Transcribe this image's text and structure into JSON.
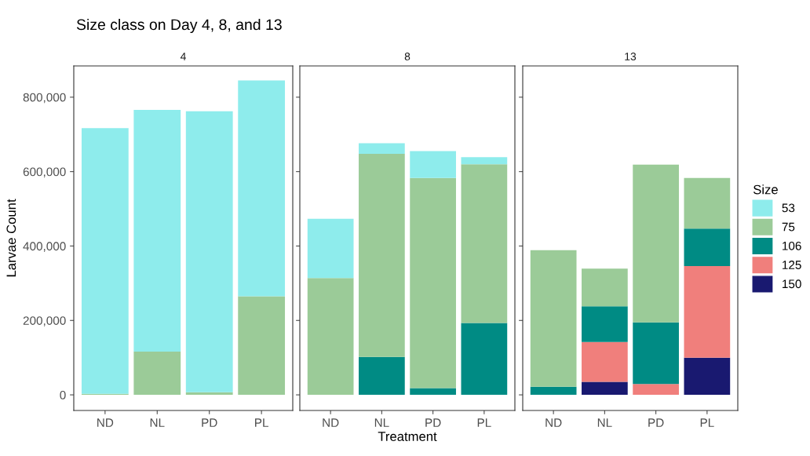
{
  "chart_data": [
    {
      "type": "bar",
      "title": "Size class on Day 4, 8, and 13",
      "subtitle": "4",
      "ylabel": "Larvae Count",
      "categories": [
        "ND",
        "NL",
        "PD",
        "PL"
      ],
      "stacked": true,
      "legend": "right",
      "ylim": [
        -42000,
        884000
      ],
      "yticks": [
        0,
        {
          "value": 200000,
          "label": "200,000"
        },
        {
          "value": 400000,
          "label": "400,000"
        },
        {
          "value": 600000,
          "label": "600,000"
        },
        {
          "value": 800000,
          "label": "800,000"
        }
      ],
      "grid": false,
      "series": [
        {
          "name": "75",
          "color": "#9bcb98",
          "values": [
            3000,
            116000,
            7000,
            265000
          ]
        },
        {
          "name": "53",
          "color": "#8eecec",
          "values": [
            714000,
            650000,
            755000,
            580000
          ]
        }
      ]
    },
    {
      "type": "bar",
      "subtitle": "8",
      "xlabel": "Treatment",
      "categories": [
        "ND",
        "NL",
        "PD",
        "PL"
      ],
      "stacked": true,
      "tick_labels": "x",
      "legend": "right",
      "ylim": [
        -42000,
        884000
      ],
      "yticks": [
        {
          "value": 0,
          "label": null
        },
        {
          "value": 200000,
          "label": null
        },
        {
          "value": 400000,
          "label": null
        },
        {
          "value": 600000,
          "label": null
        },
        {
          "value": 800000,
          "label": null
        }
      ],
      "grid": false,
      "series": [
        {
          "name": "106",
          "color": "#008b84",
          "values": [
            0,
            102000,
            18000,
            193000
          ]
        },
        {
          "name": "75",
          "color": "#9bcb98",
          "values": [
            314000,
            546000,
            565000,
            427000
          ]
        },
        {
          "name": "53",
          "color": "#8eecec",
          "values": [
            159000,
            28000,
            72000,
            19000
          ]
        }
      ]
    },
    {
      "type": "bar",
      "subtitle": "13",
      "categories": [
        "ND",
        "NL",
        "PD",
        "PL"
      ],
      "stacked": true,
      "tick_labels": "x",
      "legend": "right",
      "legend_title": "Size",
      "ylim": [
        -42000,
        884000
      ],
      "yticks": [
        {
          "value": 0,
          "label": null
        },
        {
          "value": 200000,
          "label": null
        },
        {
          "value": 400000,
          "label": null
        },
        {
          "value": 600000,
          "label": null
        },
        {
          "value": 800000,
          "label": null
        }
      ],
      "grid": false,
      "series": [
        {
          "name": "150",
          "color": "#191970",
          "values": [
            0,
            35000,
            0,
            100000
          ]
        },
        {
          "name": "125",
          "color": "#f07f7c",
          "values": [
            0,
            107000,
            29000,
            246000
          ]
        },
        {
          "name": "106",
          "color": "#008b84",
          "values": [
            22000,
            96000,
            166000,
            101000
          ]
        },
        {
          "name": "75",
          "color": "#9bcb98",
          "values": [
            367000,
            101000,
            424000,
            136000
          ]
        }
      ]
    }
  ]
}
